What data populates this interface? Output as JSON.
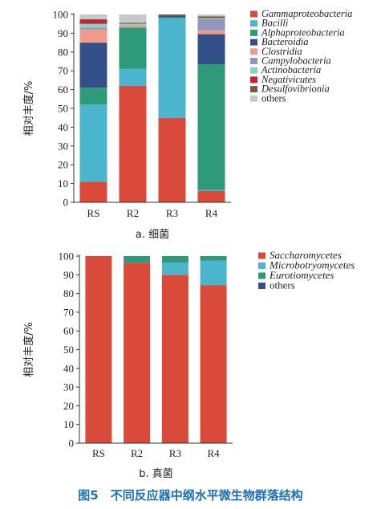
{
  "figure": {
    "caption": "图5　不同反应器中纲水平微生物群落结构"
  },
  "colors": {
    "Gammaproteobacteria": "#d94a3a",
    "Bacilli": "#4ab5cc",
    "Alphaproteobacteria": "#2e9a7a",
    "Bacteroidia": "#34508a",
    "Clostridia": "#ef9a8a",
    "Campylobacteria": "#8f97bf",
    "Actinobacteria": "#8fcfc0",
    "Negativicutes": "#c8203a",
    "Desulfovibrionia": "#7a5a3a",
    "others": "#c8c8c8",
    "Saccharomycetes": "#d94a3a",
    "Microbotryomycetes": "#4ab5cc",
    "Eurotiomycetes": "#2e9a7a",
    "fungi_others": "#34508a"
  },
  "chart_data": [
    {
      "type": "bar",
      "stacked": true,
      "subcaption": "a. 细菌",
      "ylabel": "相对丰度/%",
      "ylim": [
        0,
        100
      ],
      "yticks": [
        0,
        10,
        20,
        30,
        40,
        50,
        60,
        70,
        80,
        90,
        100
      ],
      "categories": [
        "RS",
        "R2",
        "R3",
        "R4"
      ],
      "legend_position": "right",
      "series": [
        {
          "name": "Gammaproteobacteria",
          "values": [
            11,
            62,
            45,
            6
          ]
        },
        {
          "name": "Bacilli",
          "values": [
            41,
            9,
            53,
            0.5
          ]
        },
        {
          "name": "Alphaproteobacteria",
          "values": [
            9,
            22,
            0.5,
            67
          ]
        },
        {
          "name": "Bacteroidia",
          "values": [
            24,
            0,
            1,
            16
          ]
        },
        {
          "name": "Clostridia",
          "values": [
            7,
            1,
            0,
            2
          ]
        },
        {
          "name": "Campylobacteria",
          "values": [
            1,
            0,
            0,
            6
          ]
        },
        {
          "name": "Actinobacteria",
          "values": [
            2,
            1,
            0,
            0.5
          ]
        },
        {
          "name": "Negativicutes",
          "values": [
            2,
            0,
            0,
            0
          ]
        },
        {
          "name": "Desulfovibrionia",
          "values": [
            0.5,
            0.5,
            0.5,
            1
          ]
        },
        {
          "name": "others",
          "values": [
            2.5,
            4.5,
            0,
            1
          ]
        }
      ]
    },
    {
      "type": "bar",
      "stacked": true,
      "subcaption": "b. 真菌",
      "ylabel": "相对丰度/%",
      "ylim": [
        0,
        100
      ],
      "yticks": [
        0,
        10,
        20,
        30,
        40,
        50,
        60,
        70,
        80,
        90,
        100
      ],
      "categories": [
        "RS",
        "R2",
        "R3",
        "R4"
      ],
      "legend_position": "right",
      "series": [
        {
          "name": "Saccharomycetes",
          "values": [
            100,
            96.5,
            90,
            84.5
          ]
        },
        {
          "name": "Microbotryomycetes",
          "values": [
            0,
            0,
            6.5,
            13
          ]
        },
        {
          "name": "Eurotiomycetes",
          "values": [
            0,
            3.5,
            3.5,
            2.5
          ]
        },
        {
          "name": "others",
          "values": [
            0,
            0,
            0,
            0
          ]
        }
      ]
    }
  ]
}
